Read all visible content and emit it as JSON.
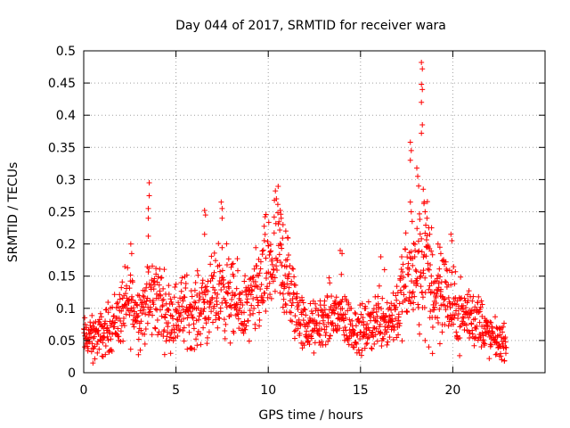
{
  "chart_data": {
    "type": "scatter",
    "title": "Day 044 of 2017, SRMTID for receiver wara",
    "xlabel": "GPS time / hours",
    "ylabel": "SRMTID / TECUs",
    "xlim": [
      0,
      25
    ],
    "ylim": [
      0,
      0.5
    ],
    "xticks": [
      0,
      5,
      10,
      15,
      20
    ],
    "yticks": [
      0,
      0.05,
      0.1,
      0.15,
      0.2,
      0.25,
      0.3,
      0.35,
      0.4,
      0.45,
      0.5
    ],
    "xtick_labels": [
      "0",
      "5",
      "10",
      "15",
      "20"
    ],
    "ytick_labels": [
      "0",
      "0.05",
      "0.1",
      "0.15",
      "0.2",
      "0.25",
      "0.3",
      "0.35",
      "0.4",
      "0.45",
      "0.5"
    ],
    "grid": true,
    "marker": "plus",
    "series_color": "#ff0000",
    "time_range": [
      0,
      22.9
    ],
    "trend": [
      [
        0.0,
        0.055
      ],
      [
        0.5,
        0.055
      ],
      [
        1.0,
        0.06
      ],
      [
        1.5,
        0.075
      ],
      [
        2.0,
        0.09
      ],
      [
        2.5,
        0.11
      ],
      [
        3.0,
        0.09
      ],
      [
        3.5,
        0.11
      ],
      [
        4.0,
        0.12
      ],
      [
        4.5,
        0.09
      ],
      [
        5.0,
        0.09
      ],
      [
        5.5,
        0.1
      ],
      [
        6.0,
        0.09
      ],
      [
        6.5,
        0.11
      ],
      [
        7.0,
        0.11
      ],
      [
        7.5,
        0.14
      ],
      [
        8.0,
        0.11
      ],
      [
        8.5,
        0.1
      ],
      [
        9.0,
        0.1
      ],
      [
        9.5,
        0.13
      ],
      [
        10.0,
        0.16
      ],
      [
        10.5,
        0.19
      ],
      [
        11.0,
        0.14
      ],
      [
        11.5,
        0.1
      ],
      [
        12.0,
        0.07
      ],
      [
        12.5,
        0.07
      ],
      [
        13.0,
        0.08
      ],
      [
        13.5,
        0.09
      ],
      [
        14.0,
        0.09
      ],
      [
        14.5,
        0.07
      ],
      [
        15.0,
        0.065
      ],
      [
        15.5,
        0.07
      ],
      [
        16.0,
        0.09
      ],
      [
        16.5,
        0.08
      ],
      [
        17.0,
        0.1
      ],
      [
        17.5,
        0.14
      ],
      [
        18.0,
        0.15
      ],
      [
        18.5,
        0.18
      ],
      [
        19.0,
        0.12
      ],
      [
        19.5,
        0.13
      ],
      [
        20.0,
        0.1
      ],
      [
        20.5,
        0.09
      ],
      [
        21.0,
        0.09
      ],
      [
        21.5,
        0.08
      ],
      [
        22.0,
        0.055
      ],
      [
        22.5,
        0.05
      ],
      [
        22.9,
        0.045
      ]
    ],
    "spikes": [
      {
        "x": 3.55,
        "y": 0.295
      },
      {
        "x": 3.55,
        "y": 0.275
      },
      {
        "x": 3.5,
        "y": 0.255
      },
      {
        "x": 3.5,
        "y": 0.24
      },
      {
        "x": 3.5,
        "y": 0.212
      },
      {
        "x": 6.55,
        "y": 0.252
      },
      {
        "x": 6.6,
        "y": 0.245
      },
      {
        "x": 6.55,
        "y": 0.215
      },
      {
        "x": 7.45,
        "y": 0.265
      },
      {
        "x": 7.5,
        "y": 0.255
      },
      {
        "x": 7.5,
        "y": 0.24
      },
      {
        "x": 2.55,
        "y": 0.2
      },
      {
        "x": 2.6,
        "y": 0.185
      },
      {
        "x": 10.65,
        "y": 0.252
      },
      {
        "x": 10.7,
        "y": 0.24
      },
      {
        "x": 10.8,
        "y": 0.23
      },
      {
        "x": 10.95,
        "y": 0.22
      },
      {
        "x": 11.05,
        "y": 0.21
      },
      {
        "x": 13.9,
        "y": 0.19
      },
      {
        "x": 14.0,
        "y": 0.185
      },
      {
        "x": 16.1,
        "y": 0.18
      },
      {
        "x": 16.3,
        "y": 0.16
      },
      {
        "x": 17.7,
        "y": 0.358
      },
      {
        "x": 17.75,
        "y": 0.345
      },
      {
        "x": 17.7,
        "y": 0.33
      },
      {
        "x": 17.7,
        "y": 0.265
      },
      {
        "x": 17.75,
        "y": 0.25
      },
      {
        "x": 17.8,
        "y": 0.235
      },
      {
        "x": 18.05,
        "y": 0.318
      },
      {
        "x": 18.1,
        "y": 0.305
      },
      {
        "x": 18.15,
        "y": 0.29
      },
      {
        "x": 18.3,
        "y": 0.482
      },
      {
        "x": 18.35,
        "y": 0.472
      },
      {
        "x": 18.3,
        "y": 0.448
      },
      {
        "x": 18.35,
        "y": 0.44
      },
      {
        "x": 18.3,
        "y": 0.42
      },
      {
        "x": 18.35,
        "y": 0.385
      },
      {
        "x": 18.3,
        "y": 0.372
      },
      {
        "x": 18.4,
        "y": 0.285
      },
      {
        "x": 18.45,
        "y": 0.265
      },
      {
        "x": 18.5,
        "y": 0.25
      },
      {
        "x": 18.6,
        "y": 0.24
      },
      {
        "x": 18.7,
        "y": 0.225
      },
      {
        "x": 18.75,
        "y": 0.215
      },
      {
        "x": 18.85,
        "y": 0.225
      },
      {
        "x": 19.2,
        "y": 0.2
      },
      {
        "x": 19.3,
        "y": 0.195
      },
      {
        "x": 19.35,
        "y": 0.185
      },
      {
        "x": 19.9,
        "y": 0.215
      },
      {
        "x": 19.95,
        "y": 0.205
      },
      {
        "x": 18.2,
        "y": 0.06
      },
      {
        "x": 18.5,
        "y": 0.05
      },
      {
        "x": 18.7,
        "y": 0.04
      },
      {
        "x": 18.9,
        "y": 0.03
      },
      {
        "x": 1.05,
        "y": 0.025
      },
      {
        "x": 0.5,
        "y": 0.015
      }
    ]
  }
}
